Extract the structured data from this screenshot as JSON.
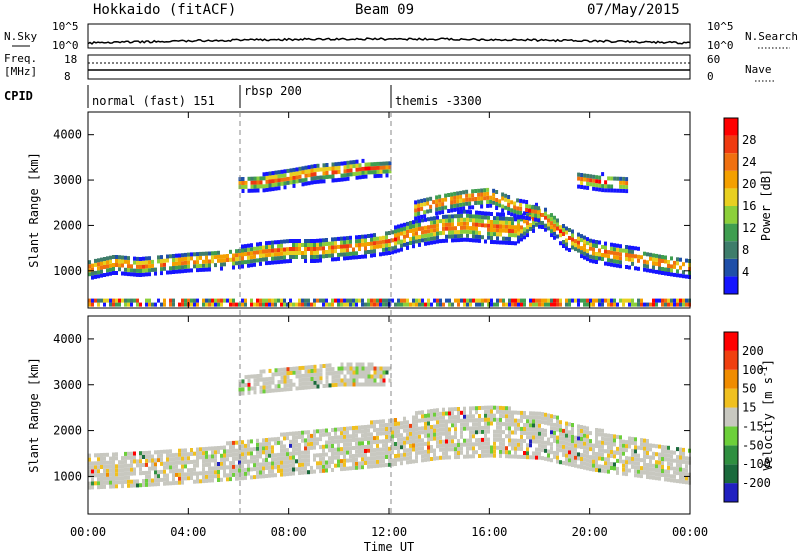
{
  "header": {
    "title": "Hokkaido (fitACF)",
    "beam": "Beam 09",
    "date": "07/May/2015"
  },
  "nsky_panel": {
    "left_label": "N.Sky",
    "right_label": "N.Search",
    "ticks": [
      "10^5",
      "10^0"
    ]
  },
  "freq_panel": {
    "left_label_1": "Freq.",
    "left_label_2": "[MHz]",
    "left_ticks": [
      "18",
      "8"
    ],
    "right_label": "Nave",
    "right_ticks": [
      "60",
      "0"
    ]
  },
  "cpid": {
    "label": "CPID",
    "segments": [
      {
        "text": "normal (fast) 151",
        "start_hour": 0
      },
      {
        "text": "rbsp 200",
        "start_hour": 6
      },
      {
        "text": "themis -3300",
        "start_hour": 12
      }
    ]
  },
  "chart_data": [
    {
      "type": "heatmap",
      "quantity": "Power",
      "ylabel": "Slant Range [km]",
      "ylim": [
        180,
        4500
      ],
      "y_ticks": [
        1000,
        2000,
        3000,
        4000
      ],
      "xlim": [
        0,
        24
      ],
      "colorbar": {
        "label": "Power [dB]",
        "ticks": [
          "28",
          "24",
          "20",
          "16",
          "12",
          "8",
          "4"
        ],
        "colors": [
          "#1515ff",
          "#1f4fa8",
          "#3e7d6b",
          "#3f9e50",
          "#8ccf3a",
          "#e8d020",
          "#f4a000",
          "#f07010",
          "#ef3a10",
          "#ff0000"
        ]
      },
      "bands": [
        {
          "name": "main",
          "hours": [
            0,
            1,
            2,
            3,
            4,
            5,
            6,
            7,
            8,
            9,
            10,
            11,
            12,
            13,
            14,
            15,
            16,
            17,
            18,
            19,
            20,
            21,
            22,
            23,
            24
          ],
          "center_km": [
            1100,
            1200,
            1150,
            1200,
            1250,
            1300,
            1350,
            1450,
            1500,
            1500,
            1550,
            1600,
            1700,
            1900,
            2000,
            2050,
            2000,
            1950,
            2300,
            1800,
            1500,
            1400,
            1300,
            1200,
            1100
          ],
          "half_width_km": [
            220,
            200,
            200,
            200,
            200,
            220,
            220,
            240,
            240,
            240,
            240,
            240,
            260,
            300,
            300,
            320,
            320,
            300,
            260,
            260,
            240,
            240,
            220,
            220,
            200
          ]
        },
        {
          "name": "upper",
          "hours": [
            6,
            7,
            8,
            9,
            10,
            11,
            12
          ],
          "center_km": [
            2950,
            3000,
            3100,
            3200,
            3250,
            3300,
            3300
          ],
          "half_width_km": [
            150,
            180,
            200,
            200,
            200,
            180,
            150
          ]
        },
        {
          "name": "upper-late",
          "hours": [
            13,
            14,
            15,
            16,
            17,
            18
          ],
          "center_km": [
            2400,
            2550,
            2650,
            2700,
            2450,
            2300
          ],
          "half_width_km": [
            200,
            220,
            220,
            220,
            200,
            150
          ]
        },
        {
          "name": "upper-evening",
          "hours": [
            19.5,
            20.5,
            21.5
          ],
          "center_km": [
            3050,
            3000,
            2950
          ],
          "half_width_km": [
            150,
            180,
            150
          ]
        },
        {
          "name": "ground",
          "hours": [
            0,
            6,
            12,
            18,
            24
          ],
          "center_km": [
            300,
            300,
            300,
            300,
            300
          ],
          "half_width_km": [
            90,
            90,
            90,
            90,
            90
          ]
        }
      ]
    },
    {
      "type": "heatmap",
      "quantity": "Velocity",
      "ylabel": "Slant Range [km]",
      "ylim": [
        180,
        4500
      ],
      "y_ticks": [
        1000,
        2000,
        3000,
        4000
      ],
      "xlim": [
        0,
        24
      ],
      "xlabel": "Time UT",
      "x_ticks": [
        "00:00",
        "04:00",
        "08:00",
        "12:00",
        "16:00",
        "20:00",
        "00:00"
      ],
      "colorbar": {
        "label": "Velocity [m s^-1]",
        "ticks": [
          "200",
          "100",
          "50",
          "15",
          "-15",
          "-50",
          "-100",
          "-200"
        ],
        "colors": [
          "#2020c0",
          "#1a6a3c",
          "#2f8f40",
          "#6ccf3a",
          "#c8c8c0",
          "#f0c020",
          "#f08c00",
          "#f04010",
          "#ff0000"
        ]
      },
      "bands": [
        {
          "name": "main",
          "hours": [
            0,
            2,
            4,
            6,
            8,
            10,
            12,
            14,
            16,
            18,
            20,
            22,
            24
          ],
          "center_km": [
            1150,
            1200,
            1300,
            1400,
            1550,
            1650,
            1800,
            2000,
            2050,
            1950,
            1650,
            1450,
            1250
          ],
          "half_width_km": [
            350,
            350,
            380,
            400,
            450,
            450,
            500,
            550,
            550,
            500,
            450,
            400,
            350
          ]
        },
        {
          "name": "upper",
          "hours": [
            6,
            8,
            10,
            12
          ],
          "center_km": [
            3050,
            3200,
            3300,
            3250
          ],
          "half_width_km": [
            200,
            250,
            250,
            200
          ]
        }
      ]
    }
  ]
}
